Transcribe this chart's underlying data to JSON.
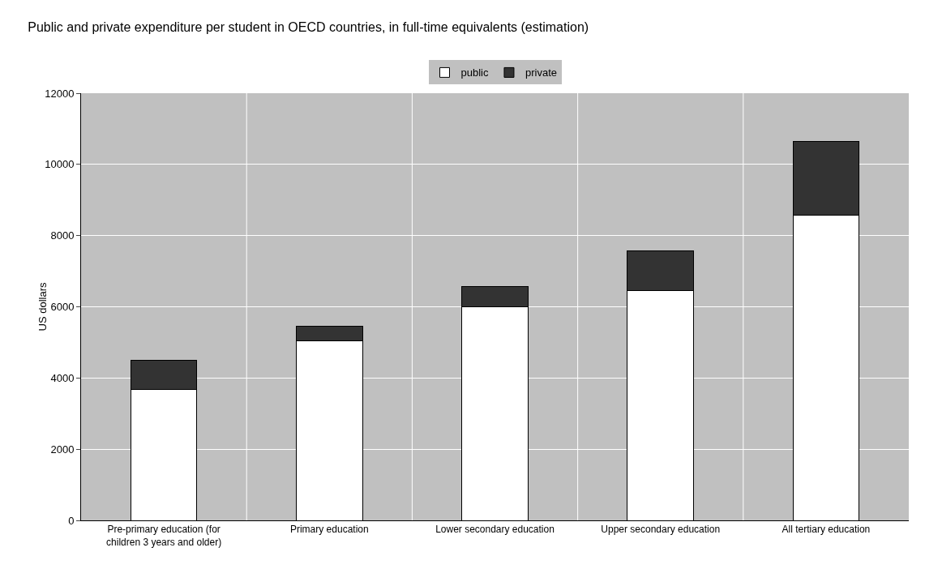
{
  "chart_data": {
    "type": "bar",
    "title": "Public and private expenditure per student in OECD countries, in full-time equivalents (estimation)",
    "ylabel": "US dollars",
    "categories": [
      "Pre-primary education (for children 3 years and older)",
      "Primary education",
      "Lower secondary education",
      "Upper secondary education",
      "All tertiary education"
    ],
    "series": [
      {
        "name": "public",
        "color": "#ffffff",
        "values": [
          3670,
          5050,
          6000,
          6460,
          8580
        ]
      },
      {
        "name": "private",
        "color": "#333333",
        "values": [
          830,
          400,
          570,
          1120,
          2070
        ]
      }
    ],
    "stacked": true,
    "ylim": [
      0,
      12000
    ],
    "yticks": [
      0,
      2000,
      4000,
      6000,
      8000,
      10000,
      12000
    ],
    "grid": true,
    "legend": "top"
  }
}
